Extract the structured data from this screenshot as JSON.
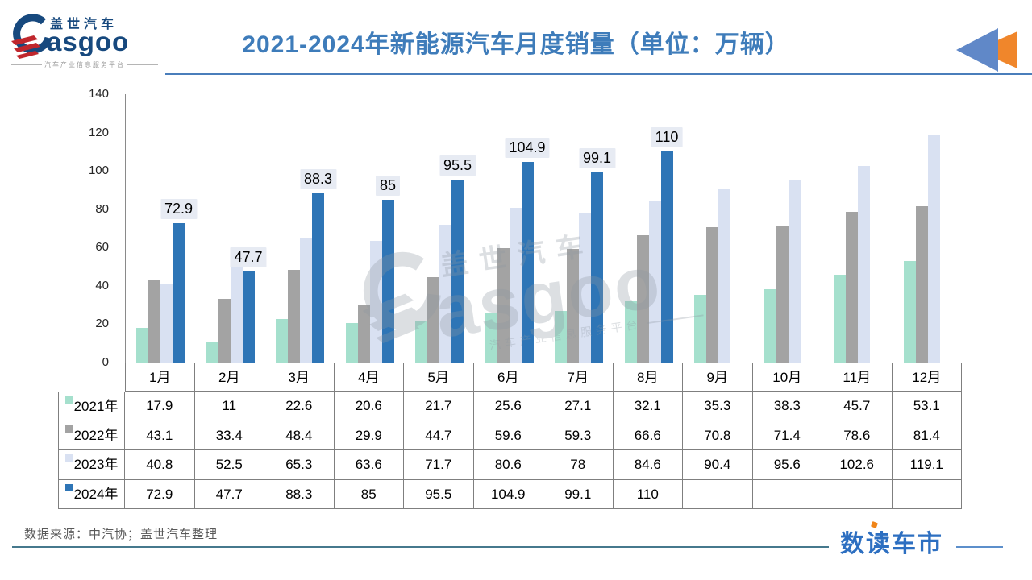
{
  "header": {
    "logo": {
      "brand_cn": "盖世汽车",
      "brand_en": "asgoo",
      "tagline": "汽车产业信息服务平台"
    },
    "title": "2021-2024年新能源汽车月度销量（单位：万辆）"
  },
  "chart_data": {
    "type": "bar",
    "title": "2021-2024年新能源汽车月度销量（单位：万辆）",
    "unit": "万辆",
    "categories": [
      "1月",
      "2月",
      "3月",
      "4月",
      "5月",
      "6月",
      "7月",
      "8月",
      "9月",
      "10月",
      "11月",
      "12月"
    ],
    "series": [
      {
        "name": "2021年",
        "color": "#A5E0CD",
        "values": [
          17.9,
          11,
          22.6,
          20.6,
          21.7,
          25.6,
          27.1,
          32.1,
          35.3,
          38.3,
          45.7,
          53.1
        ]
      },
      {
        "name": "2022年",
        "color": "#A3A3A3",
        "values": [
          43.1,
          33.4,
          48.4,
          29.9,
          44.7,
          59.6,
          59.3,
          66.6,
          70.8,
          71.4,
          78.6,
          81.4
        ]
      },
      {
        "name": "2023年",
        "color": "#D9E1F2",
        "values": [
          40.8,
          52.5,
          65.3,
          63.6,
          71.7,
          80.6,
          78,
          84.6,
          90.4,
          95.6,
          102.6,
          119.1
        ]
      },
      {
        "name": "2024年",
        "color": "#2E75B6",
        "show_data_labels": true,
        "values": [
          72.9,
          47.7,
          88.3,
          85,
          95.5,
          104.9,
          99.1,
          110,
          null,
          null,
          null,
          null
        ]
      }
    ],
    "ylim": [
      0,
      140
    ],
    "yticks": [
      0,
      20,
      40,
      60,
      80,
      100,
      120,
      140
    ],
    "grid": false,
    "legend_position": "table-row-headers",
    "data_label_bg": "#E7EBF3"
  },
  "watermark": {
    "brand_cn": "盖世汽车",
    "brand_en": "asgoo",
    "tagline": "汽车产业信息服务平台"
  },
  "footer": {
    "source": "数据来源：中汽协；盖世汽车整理",
    "brand": "数读车市"
  },
  "colors": {
    "title": "#3E7CBA",
    "header_line": "#4A7EBB",
    "triangle_blue": "#6088C8",
    "triangle_orange": "#F0862B",
    "axis": "#8A8A8A",
    "table_border": "#7F7F7F",
    "source_text": "#595959",
    "brand_blue": "#2D6FC1",
    "brand_orange": "#F08519",
    "logo_navy": "#17497E",
    "logo_red": "#C0272D"
  }
}
